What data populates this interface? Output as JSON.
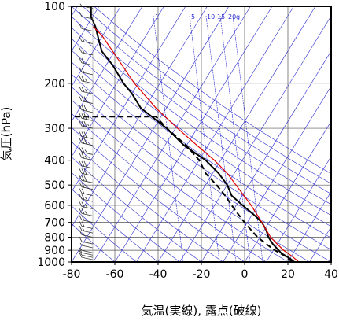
{
  "chart_data": {
    "type": "line",
    "subtype": "skew-T log-P sounding",
    "xlabel": "気温(実線), 露点(破線)",
    "ylabel": "気圧(hPa)",
    "xlim": [
      -80,
      40
    ],
    "ylim": [
      1000,
      100
    ],
    "yscale": "log",
    "x_ticks": [
      -80,
      -60,
      -40,
      -20,
      0,
      20,
      40
    ],
    "y_ticks": [
      100,
      200,
      300,
      400,
      500,
      600,
      700,
      800,
      900,
      1000
    ],
    "mixing_ratio_labels": [
      "1",
      "5",
      "10",
      "15",
      "20",
      "g"
    ],
    "colors": {
      "temperature": "#000000",
      "dewpoint": "#000000",
      "parcel": "#e00000",
      "isotherm_adiabat": "#2b2bd0",
      "grid": "#555555"
    },
    "series": [
      {
        "name": "気温",
        "style": "solid",
        "points": [
          [
            1000,
            23
          ],
          [
            970,
            21
          ],
          [
            925,
            17
          ],
          [
            850,
            13
          ],
          [
            800,
            11
          ],
          [
            750,
            10
          ],
          [
            700,
            8
          ],
          [
            650,
            4
          ],
          [
            600,
            -1
          ],
          [
            550,
            -6
          ],
          [
            500,
            -8
          ],
          [
            450,
            -12
          ],
          [
            400,
            -18
          ],
          [
            350,
            -28
          ],
          [
            300,
            -36
          ],
          [
            250,
            -48
          ],
          [
            220,
            -52
          ],
          [
            200,
            -56
          ],
          [
            170,
            -61
          ],
          [
            150,
            -66
          ],
          [
            140,
            -67
          ],
          [
            120,
            -69
          ],
          [
            110,
            -71
          ],
          [
            100,
            -71
          ]
        ]
      },
      {
        "name": "露点",
        "style": "dashed",
        "points": [
          [
            1000,
            22
          ],
          [
            950,
            19
          ],
          [
            900,
            14
          ],
          [
            850,
            10
          ],
          [
            800,
            6
          ],
          [
            750,
            3
          ],
          [
            700,
            0
          ],
          [
            650,
            -3
          ],
          [
            600,
            -6
          ],
          [
            550,
            -9
          ],
          [
            500,
            -13
          ],
          [
            450,
            -18
          ],
          [
            400,
            -21
          ],
          [
            350,
            -27
          ],
          [
            300,
            -36
          ],
          [
            270,
            -41
          ],
          [
            270,
            -80
          ]
        ]
      },
      {
        "name": "",
        "style": "solid",
        "points": [
          [
            1000,
            25
          ],
          [
            950,
            22
          ],
          [
            900,
            18
          ],
          [
            850,
            15
          ],
          [
            800,
            12
          ],
          [
            700,
            8
          ],
          [
            600,
            3
          ],
          [
            500,
            -4
          ],
          [
            450,
            -8
          ],
          [
            400,
            -14
          ],
          [
            350,
            -22
          ],
          [
            300,
            -31
          ],
          [
            250,
            -41
          ],
          [
            200,
            -51
          ],
          [
            150,
            -61
          ],
          [
            130,
            -66
          ],
          [
            120,
            -70
          ]
        ]
      }
    ],
    "wind_barbs": [
      {
        "p": 980,
        "speed": 10
      },
      {
        "p": 960,
        "speed": 10
      },
      {
        "p": 940,
        "speed": 10
      },
      {
        "p": 920,
        "speed": 5
      },
      {
        "p": 880,
        "speed": 5
      },
      {
        "p": 850,
        "speed": 10
      },
      {
        "p": 800,
        "speed": 15
      },
      {
        "p": 770,
        "speed": 15
      },
      {
        "p": 740,
        "speed": 20
      },
      {
        "p": 700,
        "speed": 20
      },
      {
        "p": 660,
        "speed": 25
      },
      {
        "p": 620,
        "speed": 25
      },
      {
        "p": 580,
        "speed": 25
      },
      {
        "p": 550,
        "speed": 20
      },
      {
        "p": 520,
        "speed": 25
      },
      {
        "p": 490,
        "speed": 30
      },
      {
        "p": 460,
        "speed": 30
      },
      {
        "p": 430,
        "speed": 30
      },
      {
        "p": 400,
        "speed": 25
      },
      {
        "p": 380,
        "speed": 25
      },
      {
        "p": 350,
        "speed": 30
      },
      {
        "p": 330,
        "speed": 30
      },
      {
        "p": 300,
        "speed": 35
      },
      {
        "p": 280,
        "speed": 35
      },
      {
        "p": 260,
        "speed": 30
      },
      {
        "p": 240,
        "speed": 30
      },
      {
        "p": 220,
        "speed": 25
      },
      {
        "p": 200,
        "speed": 25
      },
      {
        "p": 185,
        "speed": 20
      },
      {
        "p": 170,
        "speed": 20
      },
      {
        "p": 155,
        "speed": 15
      },
      {
        "p": 140,
        "speed": 15
      },
      {
        "p": 125,
        "speed": 10
      },
      {
        "p": 112,
        "speed": 10
      },
      {
        "p": 102,
        "speed": 5
      }
    ],
    "grid": true,
    "legend": "none"
  }
}
